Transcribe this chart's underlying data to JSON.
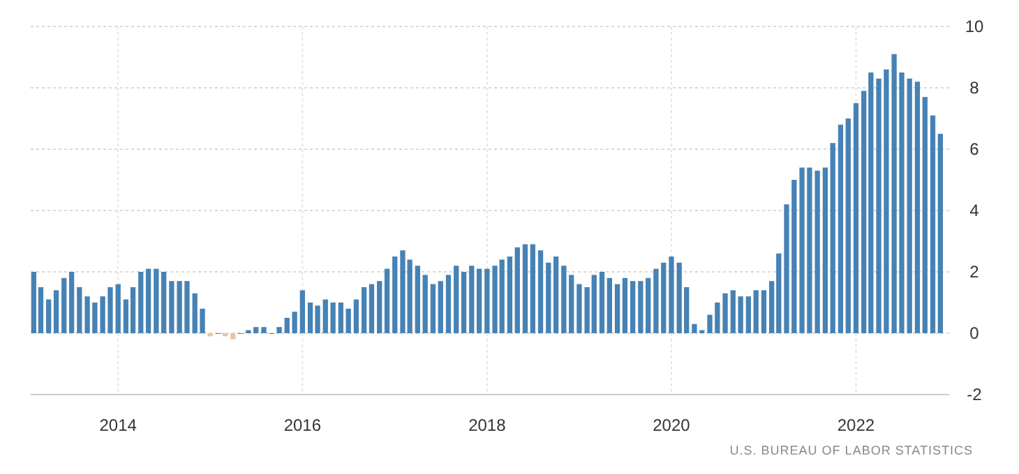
{
  "chart_data": {
    "type": "bar",
    "x": [
      "2013-02",
      "2013-03",
      "2013-04",
      "2013-05",
      "2013-06",
      "2013-07",
      "2013-08",
      "2013-09",
      "2013-10",
      "2013-11",
      "2013-12",
      "2014-01",
      "2014-02",
      "2014-03",
      "2014-04",
      "2014-05",
      "2014-06",
      "2014-07",
      "2014-08",
      "2014-09",
      "2014-10",
      "2014-11",
      "2014-12",
      "2015-01",
      "2015-02",
      "2015-03",
      "2015-04",
      "2015-05",
      "2015-06",
      "2015-07",
      "2015-08",
      "2015-09",
      "2015-10",
      "2015-11",
      "2015-12",
      "2016-01",
      "2016-02",
      "2016-03",
      "2016-04",
      "2016-05",
      "2016-06",
      "2016-07",
      "2016-08",
      "2016-09",
      "2016-10",
      "2016-11",
      "2016-12",
      "2017-01",
      "2017-02",
      "2017-03",
      "2017-04",
      "2017-05",
      "2017-06",
      "2017-07",
      "2017-08",
      "2017-09",
      "2017-10",
      "2017-11",
      "2017-12",
      "2018-01",
      "2018-02",
      "2018-03",
      "2018-04",
      "2018-05",
      "2018-06",
      "2018-07",
      "2018-08",
      "2018-09",
      "2018-10",
      "2018-11",
      "2018-12",
      "2019-01",
      "2019-02",
      "2019-03",
      "2019-04",
      "2019-05",
      "2019-06",
      "2019-07",
      "2019-08",
      "2019-09",
      "2019-10",
      "2019-11",
      "2019-12",
      "2020-01",
      "2020-02",
      "2020-03",
      "2020-04",
      "2020-05",
      "2020-06",
      "2020-07",
      "2020-08",
      "2020-09",
      "2020-10",
      "2020-11",
      "2020-12",
      "2021-01",
      "2021-02",
      "2021-03",
      "2021-04",
      "2021-05",
      "2021-06",
      "2021-07",
      "2021-08",
      "2021-09",
      "2021-10",
      "2021-11",
      "2021-12",
      "2022-01",
      "2022-02",
      "2022-03",
      "2022-04",
      "2022-05",
      "2022-06",
      "2022-07",
      "2022-08",
      "2022-09",
      "2022-10",
      "2022-11",
      "2022-12"
    ],
    "values": [
      2.0,
      1.5,
      1.1,
      1.4,
      1.8,
      2.0,
      1.5,
      1.2,
      1.0,
      1.2,
      1.5,
      1.6,
      1.1,
      1.5,
      2.0,
      2.1,
      2.1,
      2.0,
      1.7,
      1.7,
      1.7,
      1.3,
      0.8,
      -0.1,
      0.0,
      -0.1,
      -0.2,
      0.0,
      0.1,
      0.2,
      0.2,
      0.0,
      0.2,
      0.5,
      0.7,
      1.4,
      1.0,
      0.9,
      1.1,
      1.0,
      1.0,
      0.8,
      1.1,
      1.5,
      1.6,
      1.7,
      2.1,
      2.5,
      2.7,
      2.4,
      2.2,
      1.9,
      1.6,
      1.7,
      1.9,
      2.2,
      2.0,
      2.2,
      2.1,
      2.1,
      2.2,
      2.4,
      2.5,
      2.8,
      2.9,
      2.9,
      2.7,
      2.3,
      2.5,
      2.2,
      1.9,
      1.6,
      1.5,
      1.9,
      2.0,
      1.8,
      1.6,
      1.8,
      1.7,
      1.7,
      1.8,
      2.1,
      2.3,
      2.5,
      2.3,
      1.5,
      0.3,
      0.1,
      0.6,
      1.0,
      1.3,
      1.4,
      1.2,
      1.2,
      1.4,
      1.4,
      1.7,
      2.6,
      4.2,
      5.0,
      5.4,
      5.4,
      5.3,
      5.4,
      6.2,
      6.8,
      7.0,
      7.5,
      7.9,
      8.5,
      8.3,
      8.6,
      9.1,
      8.5,
      8.3,
      8.2,
      7.7,
      7.1,
      6.5
    ],
    "colors": [
      "#4682b4",
      "#4682b4",
      "#4682b4",
      "#4682b4",
      "#4682b4",
      "#4682b4",
      "#4682b4",
      "#4682b4",
      "#4682b4",
      "#4682b4",
      "#4682b4",
      "#4682b4",
      "#4682b4",
      "#4682b4",
      "#4682b4",
      "#4682b4",
      "#4682b4",
      "#4682b4",
      "#4682b4",
      "#4682b4",
      "#4682b4",
      "#4682b4",
      "#4682b4",
      "#e8c4a0",
      "#4682b4",
      "#e8c4a0",
      "#e8c4a0",
      "#4682b4",
      "#4682b4",
      "#4682b4",
      "#4682b4",
      "#4682b4",
      "#4682b4",
      "#4682b4",
      "#4682b4",
      "#4682b4",
      "#4682b4",
      "#4682b4",
      "#4682b4",
      "#4682b4",
      "#4682b4",
      "#4682b4",
      "#4682b4",
      "#4682b4",
      "#4682b4",
      "#4682b4",
      "#4682b4",
      "#4682b4",
      "#4682b4",
      "#4682b4",
      "#4682b4",
      "#4682b4",
      "#4682b4",
      "#4682b4",
      "#4682b4",
      "#4682b4",
      "#4682b4",
      "#4682b4",
      "#4682b4",
      "#4682b4",
      "#4682b4",
      "#4682b4",
      "#4682b4",
      "#4682b4",
      "#4682b4",
      "#4682b4",
      "#4682b4",
      "#4682b4",
      "#4682b4",
      "#4682b4",
      "#4682b4",
      "#4682b4",
      "#4682b4",
      "#4682b4",
      "#4682b4",
      "#4682b4",
      "#4682b4",
      "#4682b4",
      "#4682b4",
      "#4682b4",
      "#4682b4",
      "#4682b4",
      "#4682b4",
      "#4682b4",
      "#4682b4",
      "#4682b4",
      "#4682b4",
      "#4682b4",
      "#4682b4",
      "#4682b4",
      "#4682b4",
      "#4682b4",
      "#4682b4",
      "#4682b4",
      "#4682b4",
      "#4682b4",
      "#4682b4",
      "#4682b4",
      "#4682b4",
      "#4682b4",
      "#4682b4",
      "#4682b4",
      "#4682b4",
      "#4682b4",
      "#4682b4",
      "#4682b4",
      "#4682b4",
      "#4682b4",
      "#4682b4",
      "#4682b4",
      "#4682b4",
      "#4682b4",
      "#4682b4",
      "#4682b4",
      "#4682b4",
      "#4682b4",
      "#4682b4",
      "#4682b4",
      "#4682b4"
    ],
    "xlim": [
      "2013-01-20",
      "2023-01-05"
    ],
    "xticks": [
      "2014",
      "2016",
      "2018",
      "2020",
      "2022"
    ],
    "ylim": [
      -2,
      10
    ],
    "yticks": [
      -2,
      0,
      2,
      4,
      6,
      8,
      10
    ],
    "grid": true,
    "annotations": [
      "U.S. BUREAU OF LABOR STATISTICS"
    ]
  }
}
